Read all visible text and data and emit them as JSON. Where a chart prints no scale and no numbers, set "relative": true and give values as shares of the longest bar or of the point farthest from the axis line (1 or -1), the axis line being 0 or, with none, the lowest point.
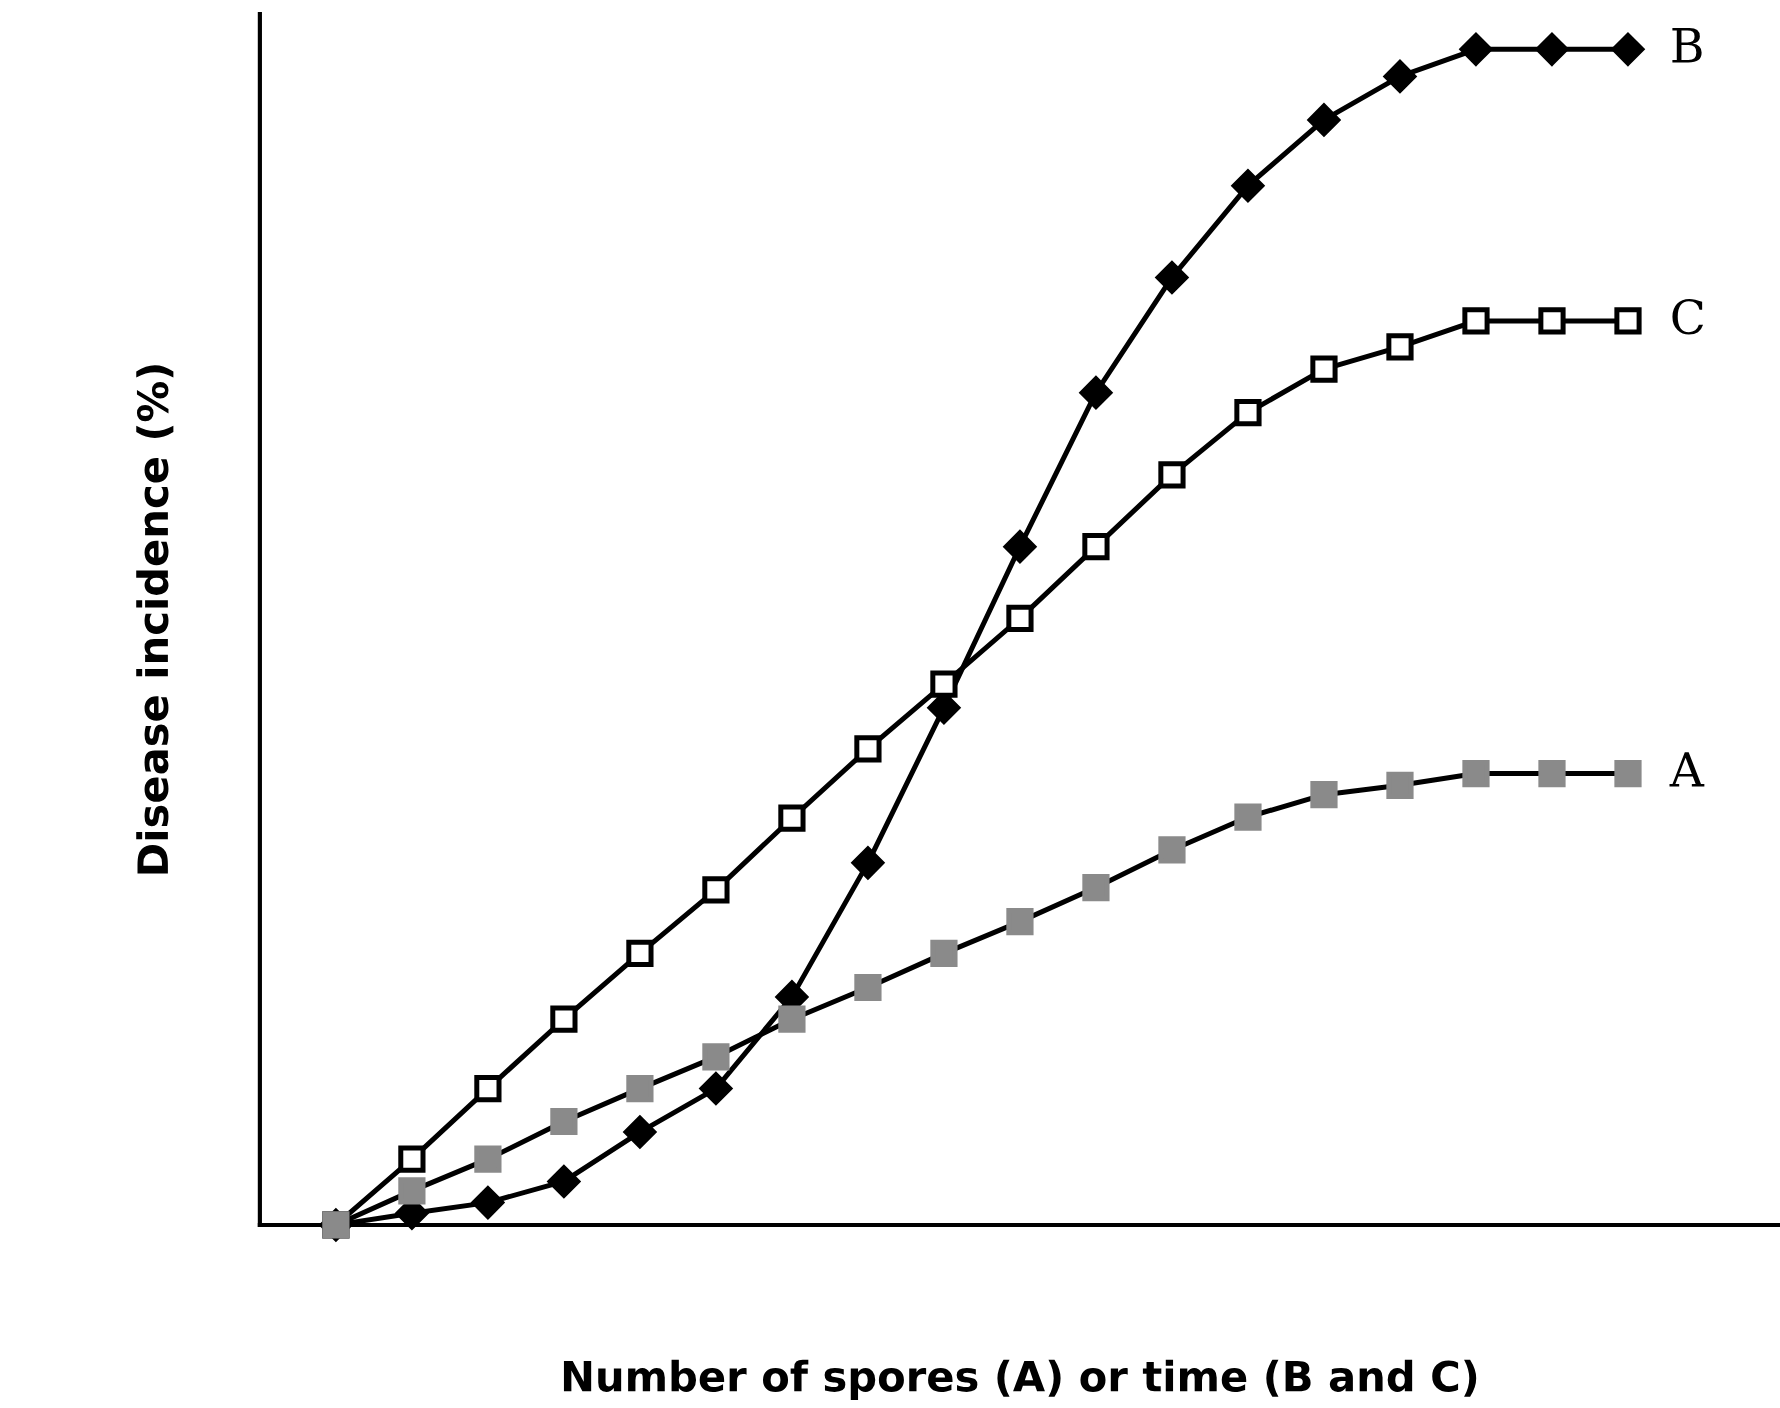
{
  "chart_data": {
    "type": "line",
    "relative": true,
    "xlabel": "Number of spores (A) or time (B and C)",
    "ylabel": "Disease incidence (%)",
    "grid": false,
    "legend": false,
    "line_style": "solid",
    "categories": [
      null,
      null,
      null,
      null,
      null,
      null,
      null,
      null,
      null,
      null,
      null,
      null,
      null,
      null,
      null,
      null,
      null,
      null
    ],
    "series": [
      {
        "name": "B",
        "color": "#000000",
        "marker": "diamond",
        "values": [
          0,
          0.01,
          0.019,
          0.037,
          0.079,
          0.116,
          0.194,
          0.308,
          0.44,
          0.577,
          0.708,
          0.806,
          0.884,
          0.94,
          0.977,
          1,
          1,
          1
        ]
      },
      {
        "name": "C",
        "color": "#000000",
        "marker": "square",
        "values": [
          0,
          0.056,
          0.116,
          0.175,
          0.231,
          0.285,
          0.346,
          0.405,
          0.46,
          0.516,
          0.577,
          0.638,
          0.691,
          0.728,
          0.747,
          0.769,
          0.769,
          0.769
        ]
      },
      {
        "name": "A",
        "color": "#8a8a8a",
        "marker": "square",
        "values": [
          0,
          0.029,
          0.056,
          0.088,
          0.116,
          0.143,
          0.175,
          0.202,
          0.231,
          0.258,
          0.287,
          0.319,
          0.347,
          0.366,
          0.374,
          0.384,
          0.384,
          0.384
        ]
      }
    ]
  }
}
